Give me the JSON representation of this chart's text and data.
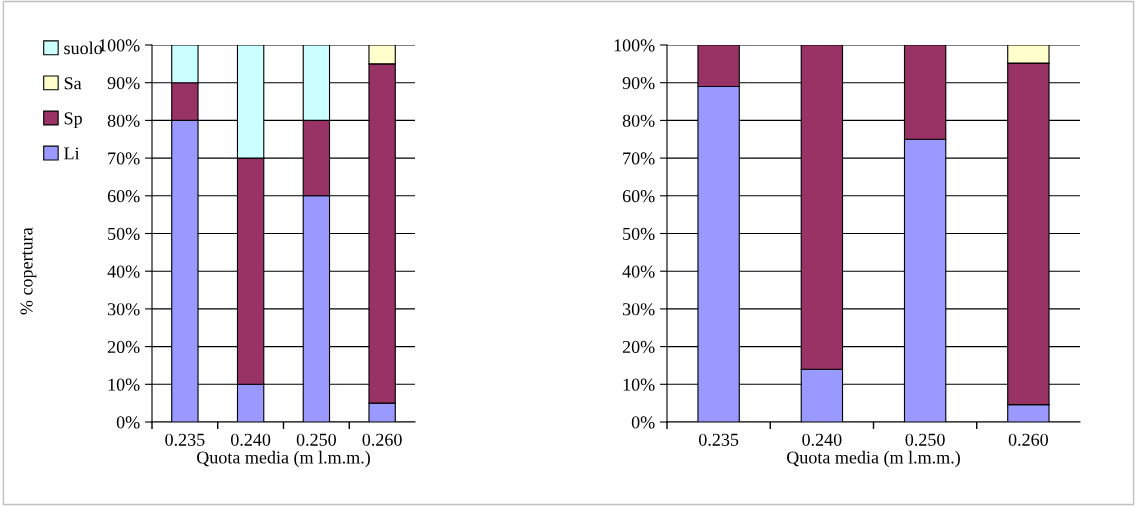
{
  "chart_data": [
    {
      "type": "bar",
      "stacked": true,
      "categories": [
        "0.235",
        "0.240",
        "0.250",
        "0.260"
      ],
      "xlabel": "Quota media (m l.m.m.)",
      "ylabel": "% copertura",
      "ylim": [
        0,
        100
      ],
      "yticks": [
        {
          "value": 0,
          "label": "0%"
        },
        {
          "value": 10,
          "label": "10%"
        },
        {
          "value": 20,
          "label": "20%"
        },
        {
          "value": 30,
          "label": "30%"
        },
        {
          "value": 40,
          "label": "40%"
        },
        {
          "value": 50,
          "label": "50%"
        },
        {
          "value": 60,
          "label": "60%"
        },
        {
          "value": 70,
          "label": "70%"
        },
        {
          "value": 80,
          "label": "80%"
        },
        {
          "value": 90,
          "label": "90%"
        },
        {
          "value": 100,
          "label": "100%"
        }
      ],
      "grid": "y",
      "legend": "left",
      "series": [
        {
          "name": "Li",
          "color": "#9999ff",
          "values": [
            80,
            10,
            60,
            5
          ]
        },
        {
          "name": "Sp",
          "color": "#993366",
          "values": [
            10,
            60,
            20,
            90
          ]
        },
        {
          "name": "Sa",
          "color": "#ffffcc",
          "values": [
            0,
            0,
            0,
            5
          ]
        },
        {
          "name": "suolo",
          "color": "#ccffff",
          "values": [
            10,
            30,
            20,
            0
          ]
        }
      ]
    },
    {
      "type": "bar",
      "stacked": true,
      "categories": [
        "0.235",
        "0.240",
        "0.250",
        "0.260"
      ],
      "xlabel": "Quota media (m l.m.m.)",
      "ylim": [
        0,
        100
      ],
      "yticks": [
        {
          "value": 0,
          "label": "0%"
        },
        {
          "value": 10,
          "label": "10%"
        },
        {
          "value": 20,
          "label": "20%"
        },
        {
          "value": 30,
          "label": "30%"
        },
        {
          "value": 40,
          "label": "40%"
        },
        {
          "value": 50,
          "label": "50%"
        },
        {
          "value": 60,
          "label": "60%"
        },
        {
          "value": 70,
          "label": "70%"
        },
        {
          "value": 80,
          "label": "80%"
        },
        {
          "value": 90,
          "label": "90%"
        },
        {
          "value": 100,
          "label": "100%"
        }
      ],
      "grid": "y",
      "series": [
        {
          "color": "#9999ff",
          "values": [
            89,
            14,
            75,
            4.6
          ]
        },
        {
          "color": "#993366",
          "values": [
            11,
            86,
            25,
            90.6
          ]
        },
        {
          "color": "#ffffcc",
          "values": [
            0,
            0,
            0,
            4.8
          ]
        }
      ]
    }
  ]
}
